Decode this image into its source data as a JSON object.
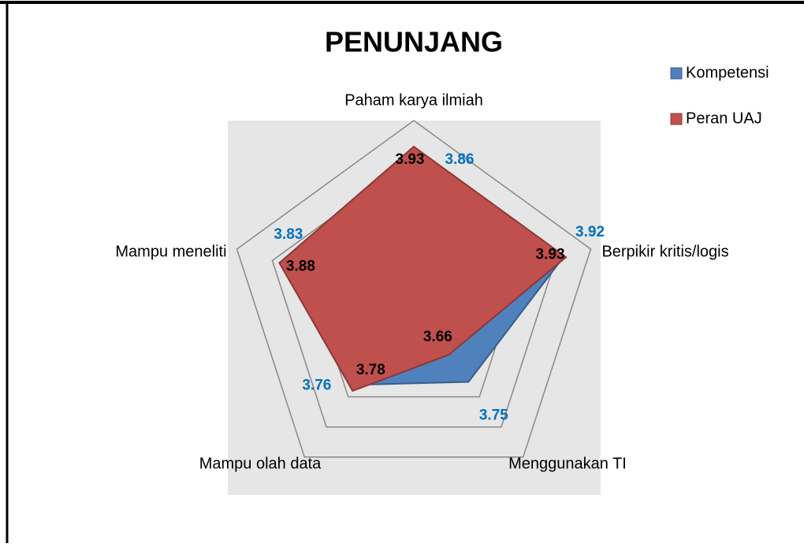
{
  "chart_data": {
    "type": "radar",
    "title": "PENUNJANG",
    "categories": [
      "Paham karya ilmiah",
      "Berpikir kritis/logis",
      "Menggunakan TI",
      "Mampu olah data",
      "Mampu meneliti"
    ],
    "series": [
      {
        "name": "Kompetensi",
        "color": "#4f81bd",
        "label_color": "#0070c0",
        "values": [
          3.86,
          3.92,
          3.75,
          3.76,
          3.83
        ]
      },
      {
        "name": "Peran UAJ",
        "color": "#c0504d",
        "label_color": "#000000",
        "values": [
          3.93,
          3.93,
          3.66,
          3.78,
          3.88
        ]
      }
    ],
    "rlim": [
      3.5,
      4.0
    ],
    "rticks": [
      3.5,
      3.6,
      3.7,
      3.8,
      3.9,
      4.0
    ],
    "grid": true,
    "legend": "right"
  }
}
